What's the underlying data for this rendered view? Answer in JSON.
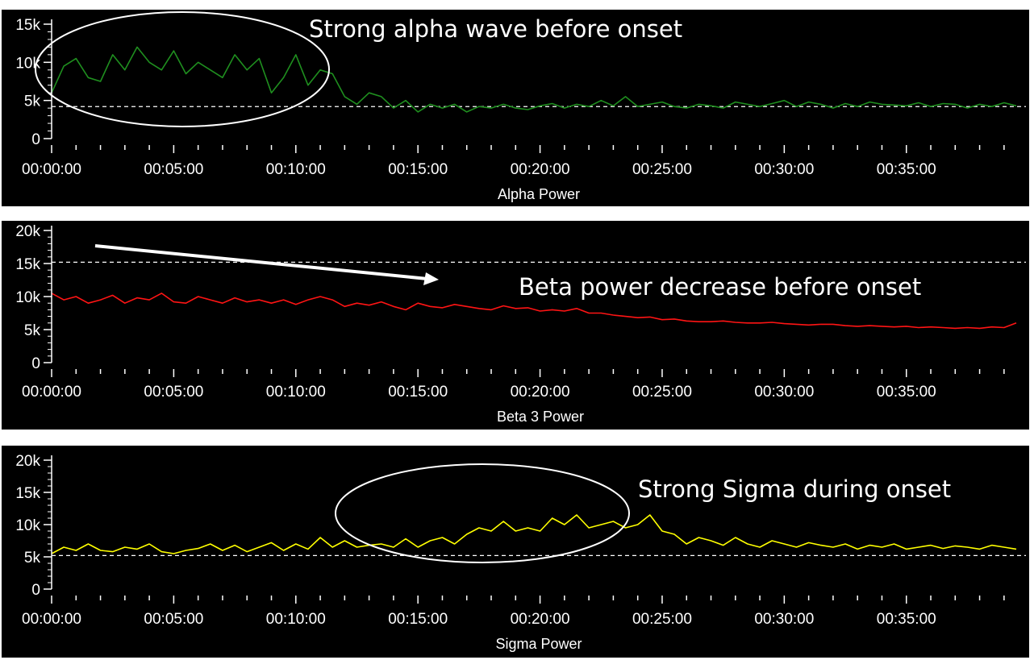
{
  "chart_data": [
    {
      "type": "line",
      "xlabel": "Alpha Power",
      "ylabel": "",
      "x_ticks": [
        "00:00:00",
        "00:05:00",
        "00:10:00",
        "00:15:00",
        "00:20:00",
        "00:25:00",
        "00:30:00",
        "00:35:00"
      ],
      "y_ticks": [
        "0",
        "5k",
        "10k",
        "15k"
      ],
      "ylim": [
        0,
        15000
      ],
      "xlim_minutes": [
        0,
        39.5
      ],
      "reference_line": 4200,
      "series": [
        {
          "color": "#1f8f1f",
          "sample_interval_minutes": 0.5,
          "values": [
            6000,
            9500,
            10500,
            8000,
            7500,
            11000,
            9000,
            12000,
            10000,
            9000,
            11500,
            8500,
            10000,
            9000,
            8000,
            11000,
            9000,
            10500,
            6000,
            8000,
            11000,
            7000,
            9000,
            8500,
            5500,
            4500,
            6000,
            5500,
            4000,
            5000,
            3500,
            4500,
            4000,
            4500,
            3500,
            4200,
            4000,
            4500,
            4000,
            3800,
            4300,
            4600,
            4000,
            4500,
            4200,
            5000,
            4300,
            5500,
            4200,
            4500,
            4800,
            4200,
            4000,
            4500,
            4300,
            4000,
            4800,
            4500,
            4200,
            4600,
            5000,
            4200,
            4800,
            4500,
            4000,
            4600,
            4200,
            4800,
            4500,
            4400,
            4300,
            4700,
            4200,
            4600,
            4500,
            4000,
            4500,
            4200,
            4700,
            4300
          ]
        }
      ],
      "annotations": [
        {
          "text": "Strong alpha wave before onset",
          "shape": "ellipse"
        }
      ]
    },
    {
      "type": "line",
      "xlabel": "Beta 3 Power",
      "ylabel": "",
      "x_ticks": [
        "00:00:00",
        "00:05:00",
        "00:10:00",
        "00:15:00",
        "00:20:00",
        "00:25:00",
        "00:30:00",
        "00:35:00"
      ],
      "y_ticks": [
        "0",
        "5k",
        "10k",
        "15k",
        "20k"
      ],
      "ylim": [
        0,
        20000
      ],
      "xlim_minutes": [
        0,
        39.5
      ],
      "reference_line": 15200,
      "series": [
        {
          "color": "#ff1414",
          "sample_interval_minutes": 0.5,
          "values": [
            10500,
            9500,
            10000,
            9000,
            9500,
            10200,
            9000,
            9800,
            9500,
            10500,
            9200,
            9000,
            10000,
            9500,
            9000,
            9800,
            9200,
            9500,
            9000,
            9500,
            8800,
            9500,
            10000,
            9500,
            8500,
            9000,
            8700,
            9200,
            8500,
            8000,
            9000,
            8500,
            8300,
            8800,
            8500,
            8200,
            8000,
            8600,
            8200,
            8300,
            7800,
            8000,
            7800,
            8200,
            7500,
            7500,
            7200,
            7000,
            6800,
            6900,
            6500,
            6600,
            6300,
            6200,
            6200,
            6300,
            6100,
            6000,
            6000,
            6100,
            5900,
            5800,
            5700,
            5800,
            5800,
            5600,
            5500,
            5600,
            5500,
            5400,
            5500,
            5300,
            5400,
            5300,
            5200,
            5300,
            5200,
            5400,
            5300,
            6000
          ]
        }
      ],
      "annotations": [
        {
          "text": "Beta power decrease before onset",
          "shape": "arrow"
        }
      ]
    },
    {
      "type": "line",
      "xlabel": "Sigma Power",
      "ylabel": "",
      "x_ticks": [
        "00:00:00",
        "00:05:00",
        "00:10:00",
        "00:15:00",
        "00:20:00",
        "00:25:00",
        "00:30:00",
        "00:35:00"
      ],
      "y_ticks": [
        "0",
        "5k",
        "10k",
        "15k",
        "20k"
      ],
      "ylim": [
        0,
        20000
      ],
      "xlim_minutes": [
        0,
        39.5
      ],
      "reference_line": 5200,
      "series": [
        {
          "color": "#ffff00",
          "sample_interval_minutes": 0.5,
          "values": [
            5500,
            6500,
            6000,
            7000,
            6000,
            5800,
            6500,
            6200,
            7000,
            5800,
            5500,
            6000,
            6300,
            7000,
            6000,
            6800,
            5800,
            6500,
            7200,
            6000,
            7000,
            6200,
            8000,
            6500,
            7500,
            6500,
            6800,
            7000,
            6500,
            7800,
            6500,
            7500,
            8000,
            7000,
            8500,
            9500,
            9000,
            10500,
            9000,
            9500,
            9000,
            11000,
            10000,
            11500,
            9500,
            10000,
            10500,
            9500,
            10000,
            11500,
            9000,
            8500,
            7000,
            8000,
            7500,
            6800,
            8000,
            7000,
            6500,
            7500,
            7000,
            6500,
            7200,
            6800,
            6500,
            7000,
            6200,
            6800,
            6500,
            7000,
            6200,
            6500,
            6800,
            6300,
            6700,
            6500,
            6200,
            6800,
            6500,
            6200
          ]
        }
      ],
      "annotations": [
        {
          "text": "Strong Sigma during onset",
          "shape": "ellipse"
        }
      ]
    }
  ]
}
